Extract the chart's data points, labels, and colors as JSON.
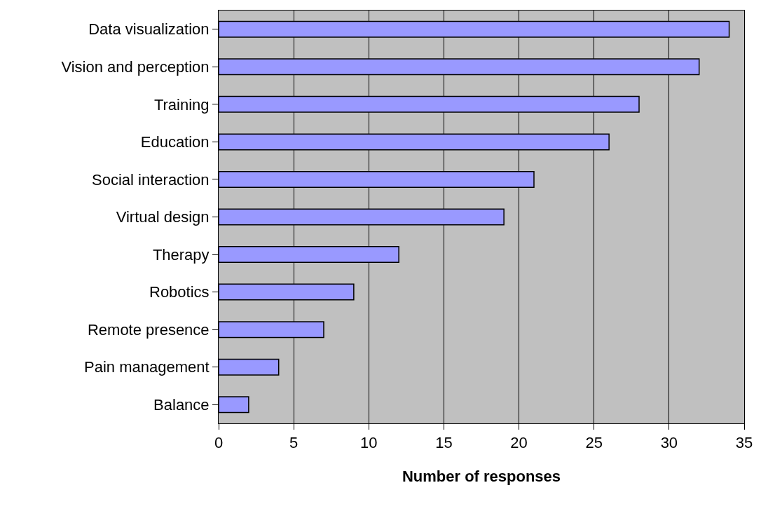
{
  "chart_data": {
    "type": "bar",
    "orientation": "horizontal",
    "xlabel": "Number of responses",
    "categories": [
      "Data visualization",
      "Vision and perception",
      "Training",
      "Education",
      "Social interaction",
      "Virtual design",
      "Therapy",
      "Robotics",
      "Remote presence",
      "Pain management",
      "Balance"
    ],
    "values": [
      34,
      32,
      28,
      26,
      21,
      19,
      12,
      9,
      7,
      4,
      2
    ],
    "color": "#9999ff",
    "xlim": [
      0,
      35
    ],
    "xticks": [
      0,
      5,
      10,
      15,
      20,
      25,
      30,
      35
    ],
    "grid": "x"
  }
}
